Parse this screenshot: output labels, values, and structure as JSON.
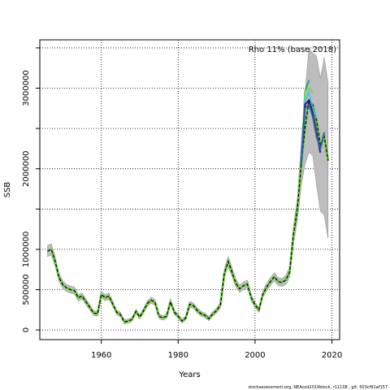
{
  "chart_data": {
    "type": "line",
    "title": "",
    "annotation": "Rho 11% (base 2018)",
    "xlabel": "Years",
    "ylabel": "SSB",
    "xlim": [
      1944,
      2022
    ],
    "ylim": [
      -120000,
      3600000
    ],
    "xticks": [
      1960,
      1980,
      2000,
      2020
    ],
    "yticks": [
      0,
      500000,
      1000000,
      1500000,
      2000000,
      2500000,
      3000000,
      3500000
    ],
    "ytick_labels": [
      "0",
      "500000",
      "1000000",
      "",
      "2000000",
      "",
      "3000000",
      ""
    ],
    "grid": true,
    "footer": "stockassessment.org, NEAcod2019block, r11138 , git: 503cf91af157",
    "base_series": {
      "name": "",
      "color": "#000000",
      "x": [
        1946,
        1947,
        1948,
        1949,
        1950,
        1951,
        1952,
        1953,
        1954,
        1955,
        1956,
        1957,
        1958,
        1959,
        1960,
        1961,
        1962,
        1963,
        1964,
        1965,
        1966,
        1967,
        1968,
        1969,
        1970,
        1971,
        1972,
        1973,
        1974,
        1975,
        1976,
        1977,
        1978,
        1979,
        1980,
        1981,
        1982,
        1983,
        1984,
        1985,
        1986,
        1987,
        1988,
        1989,
        1990,
        1991,
        1992,
        1993,
        1994,
        1995,
        1996,
        1997,
        1998,
        1999,
        2000,
        2001,
        2002,
        2003,
        2004,
        2005,
        2006,
        2007,
        2008,
        2009,
        2010,
        2011,
        2012,
        2013,
        2014,
        2015,
        2016,
        2017,
        2018,
        2019
      ],
      "y": [
        980000,
        1000000,
        850000,
        650000,
        560000,
        520000,
        500000,
        490000,
        400000,
        420000,
        350000,
        280000,
        210000,
        200000,
        440000,
        400000,
        420000,
        320000,
        220000,
        190000,
        100000,
        110000,
        130000,
        230000,
        160000,
        240000,
        330000,
        370000,
        340000,
        170000,
        150000,
        170000,
        350000,
        220000,
        170000,
        110000,
        150000,
        320000,
        300000,
        240000,
        200000,
        180000,
        140000,
        200000,
        240000,
        310000,
        700000,
        850000,
        720000,
        580000,
        510000,
        550000,
        570000,
        400000,
        310000,
        250000,
        440000,
        530000,
        600000,
        660000,
        600000,
        590000,
        620000,
        720000,
        1180000,
        1500000,
        2050000,
        2500000,
        2850000,
        2800000,
        2600000,
        2300000,
        2400000,
        2100000
      ]
    },
    "retro_series": [
      {
        "name": "",
        "color": "#22a884",
        "end": 2013,
        "tail": [
          2960000,
          3100000
        ]
      },
      {
        "name": "",
        "color": "#7ad151",
        "end": 2014,
        "tail": [
          2960000,
          3000000,
          2950000
        ]
      },
      {
        "name": "",
        "color": "#4fc3f7",
        "end": 2015,
        "tail": [
          2850000,
          2950000,
          2750000,
          2650000
        ]
      },
      {
        "name": "",
        "color": "#3b0f70",
        "end": 2016,
        "tail": [
          2800000,
          2850000,
          2700000,
          2450000,
          2200000
        ]
      },
      {
        "name": "",
        "color": "#2e5eaa",
        "end": 2017,
        "tail": [
          2750000,
          2800000,
          2650000,
          2400000,
          2250000,
          2450000
        ]
      }
    ],
    "confidence_band": {
      "upper_factor_base": 0.05,
      "upper_factor_recent": [
        [
          2008,
          0.06
        ],
        [
          2010,
          0.08
        ],
        [
          2012,
          0.12
        ],
        [
          2013,
          0.17
        ],
        [
          2014,
          0.22
        ],
        [
          2016,
          0.3
        ],
        [
          2017,
          0.35
        ],
        [
          2018,
          0.4
        ],
        [
          2019,
          0.45
        ]
      ]
    }
  }
}
